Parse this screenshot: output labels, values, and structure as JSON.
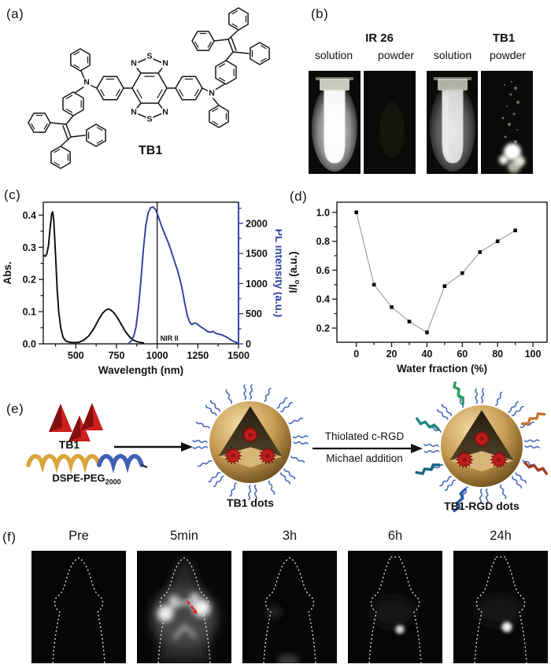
{
  "panels": {
    "a": {
      "label": "(a)",
      "molecule_name": "TB1",
      "atoms": [
        "N",
        "S",
        "N",
        "N",
        "S",
        "N",
        "N",
        "N"
      ]
    },
    "b": {
      "label": "(b)",
      "groups": [
        {
          "title": "IR 26",
          "cols": [
            "solution",
            "powder"
          ]
        },
        {
          "title": "TB1",
          "cols": [
            "solution",
            "powder"
          ]
        }
      ]
    },
    "c": {
      "label": "(c)"
    },
    "d": {
      "label": "(d)"
    },
    "e": {
      "label": "(e)",
      "tb1_label": "TB1",
      "dspe_main": "DSPE-PEG",
      "dspe_sub": "2000",
      "arrow_top": "Thiolated c-RGD",
      "arrow_bottom": "Michael addition",
      "dots_label": "TB1 dots",
      "rgd_label": "TB1-RGD dots"
    },
    "f": {
      "label": "(f)",
      "timepoints": [
        "Pre",
        "5min",
        "3h",
        "6h",
        "24h"
      ]
    }
  },
  "chart_data": [
    {
      "panel": "c",
      "type": "line",
      "xlabel": "Wavelength (nm)",
      "ylabel_left": "Abs.",
      "ylabel_right": "PL intensity (a.u.)",
      "x_range": [
        300,
        1500
      ],
      "x_ticks": [
        500,
        750,
        1000,
        1250,
        1500
      ],
      "x_minor_ticks": [
        375,
        625,
        875,
        1125,
        1375
      ],
      "y_left_range": [
        0,
        0.44
      ],
      "y_left_ticks": [
        0,
        0.1,
        0.2,
        0.3,
        0.4
      ],
      "y_left_tick_labels": [
        "0.0",
        "0.1",
        "0.2",
        "0.3",
        "0.4"
      ],
      "y_left_minor_ticks": [
        0.05,
        0.15,
        0.25,
        0.35
      ],
      "y_right_range": [
        0,
        2350
      ],
      "y_right_ticks": [
        0,
        500,
        1000,
        1500,
        2000
      ],
      "y_right_minor_ticks": [
        250,
        750,
        1250,
        1750,
        2250
      ],
      "annotation": {
        "text": "NIR II",
        "x": 1000
      },
      "series": [
        {
          "name": "absorption",
          "axis": "left",
          "color": "#0a0a0a",
          "points": [
            [
              300,
              0.275
            ],
            [
              312,
              0.272
            ],
            [
              322,
              0.28
            ],
            [
              332,
              0.305
            ],
            [
              342,
              0.36
            ],
            [
              352,
              0.405
            ],
            [
              358,
              0.41
            ],
            [
              365,
              0.38
            ],
            [
              375,
              0.28
            ],
            [
              385,
              0.17
            ],
            [
              395,
              0.1
            ],
            [
              408,
              0.048
            ],
            [
              422,
              0.02
            ],
            [
              438,
              0.009
            ],
            [
              460,
              0.005
            ],
            [
              490,
              0.004
            ],
            [
              520,
              0.005
            ],
            [
              550,
              0.012
            ],
            [
              580,
              0.025
            ],
            [
              610,
              0.047
            ],
            [
              640,
              0.075
            ],
            [
              665,
              0.095
            ],
            [
              685,
              0.105
            ],
            [
              700,
              0.108
            ],
            [
              715,
              0.105
            ],
            [
              735,
              0.096
            ],
            [
              755,
              0.082
            ],
            [
              780,
              0.06
            ],
            [
              805,
              0.038
            ],
            [
              830,
              0.022
            ],
            [
              855,
              0.011
            ],
            [
              880,
              0.006
            ],
            [
              905,
              0.004
            ],
            [
              920,
              0.003
            ]
          ]
        },
        {
          "name": "pl_emission",
          "axis": "right",
          "color": "#2b3f9e",
          "points": [
            [
              825,
              15
            ],
            [
              840,
              45
            ],
            [
              855,
              120
            ],
            [
              870,
              280
            ],
            [
              885,
              600
            ],
            [
              900,
              1050
            ],
            [
              915,
              1560
            ],
            [
              930,
              1960
            ],
            [
              945,
              2180
            ],
            [
              960,
              2260
            ],
            [
              975,
              2270
            ],
            [
              990,
              2230
            ],
            [
              1000,
              2160
            ],
            [
              1015,
              2050
            ],
            [
              1030,
              1930
            ],
            [
              1050,
              1800
            ],
            [
              1070,
              1670
            ],
            [
              1090,
              1510
            ],
            [
              1110,
              1340
            ],
            [
              1125,
              1220
            ],
            [
              1140,
              1070
            ],
            [
              1155,
              890
            ],
            [
              1170,
              670
            ],
            [
              1185,
              470
            ],
            [
              1200,
              360
            ],
            [
              1212,
              318
            ],
            [
              1225,
              340
            ],
            [
              1238,
              345
            ],
            [
              1250,
              320
            ],
            [
              1265,
              288
            ],
            [
              1280,
              262
            ],
            [
              1295,
              235
            ],
            [
              1310,
              205
            ],
            [
              1328,
              192
            ],
            [
              1344,
              206
            ],
            [
              1358,
              178
            ],
            [
              1375,
              162
            ],
            [
              1395,
              152
            ],
            [
              1415,
              128
            ],
            [
              1435,
              98
            ],
            [
              1455,
              62
            ],
            [
              1478,
              30
            ],
            [
              1500,
              8
            ]
          ]
        }
      ]
    },
    {
      "panel": "d",
      "type": "scatter-line",
      "xlabel": "Water fraction (%)",
      "ylabel_parts": [
        "I/I",
        "o",
        " (a.u.)"
      ],
      "x_axis_range": [
        -11,
        108
      ],
      "x_ticks": [
        0,
        20,
        40,
        60,
        80,
        100
      ],
      "x_minor_ticks": [
        10,
        30,
        50,
        70,
        90
      ],
      "y_axis_range": [
        0.102,
        1.07
      ],
      "y_ticks": [
        0.2,
        0.4,
        0.6,
        0.8,
        1.0
      ],
      "y_tick_labels": [
        "0.2",
        "0.4",
        "0.6",
        "0.8",
        "1.0"
      ],
      "y_minor_ticks": [
        0.3,
        0.5,
        0.7,
        0.9
      ],
      "x": [
        0,
        10,
        20,
        30,
        40,
        50,
        60,
        70,
        80,
        90
      ],
      "y": [
        1.0,
        0.5,
        0.345,
        0.245,
        0.17,
        0.49,
        0.58,
        0.725,
        0.8,
        0.875
      ],
      "marker_color": "#0a0a0a",
      "line_color": "#8f8f8f"
    }
  ],
  "colors": {
    "pl_blue": "#2b3f9e",
    "tb1_red": "#cc1f1f",
    "tb1_red_dark": "#7a0d0d",
    "coil_gold": "#d9a43a",
    "peg_blue": "#3f5fb5",
    "squiggle_blue": "#4a6ab8",
    "sphere_floor": "#d8b578",
    "aie_dot_red": "#c41d1d",
    "arrow_red": "#e31e24",
    "photo_bg": "#0a0a08",
    "ribbon_colors": [
      "#1d8a7a",
      "#2aa05e",
      "#18657f",
      "#a33b20",
      "#c7742a",
      "#255d9e"
    ]
  }
}
